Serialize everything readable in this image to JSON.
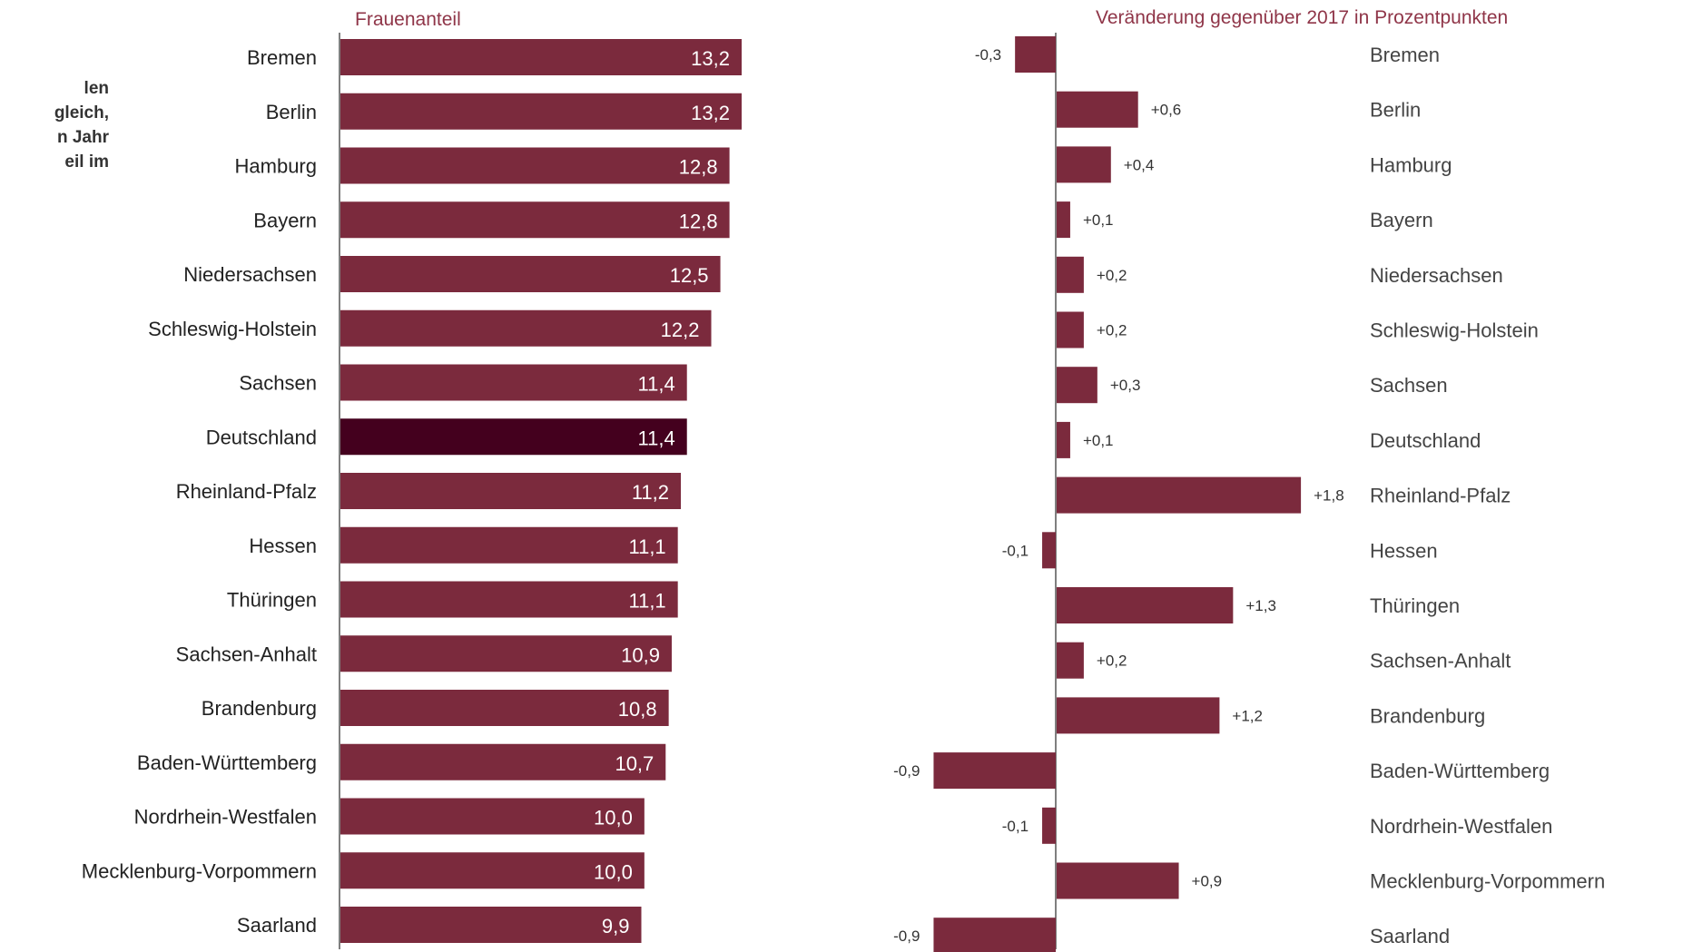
{
  "intro_fragments": [
    "len",
    "gleich,",
    "n Jahr",
    "",
    "eil im"
  ],
  "colors": {
    "bar": "#7b2a3d",
    "highlight": "#44001e",
    "title": "#8f3548",
    "axis": "#555555"
  },
  "chart_data": [
    {
      "type": "bar",
      "orientation": "horizontal",
      "title": "Frauenanteil",
      "categories": [
        "Bremen",
        "Berlin",
        "Hamburg",
        "Bayern",
        "Niedersachsen",
        "Schleswig-Holstein",
        "Sachsen",
        "Deutschland",
        "Rheinland-Pfalz",
        "Hessen",
        "Thüringen",
        "Sachsen-Anhalt",
        "Brandenburg",
        "Baden-Württemberg",
        "Nordrhein-Westfalen",
        "Mecklenburg-Vorpommern",
        "Saarland"
      ],
      "values": [
        13.2,
        13.2,
        12.8,
        12.8,
        12.5,
        12.2,
        11.4,
        11.4,
        11.2,
        11.1,
        11.1,
        10.9,
        10.8,
        10.7,
        10.0,
        10.0,
        9.9
      ],
      "value_labels": [
        "13,2",
        "13,2",
        "12,8",
        "12,8",
        "12,5",
        "12,2",
        "11,4",
        "11,4",
        "11,2",
        "11,1",
        "11,1",
        "10,9",
        "10,8",
        "10,7",
        "10,0",
        "10,0",
        "9,9"
      ],
      "highlight": "Deutschland",
      "xlim": [
        0,
        13.2
      ]
    },
    {
      "type": "bar",
      "orientation": "horizontal",
      "title": "Veränderung gegenüber 2017 in Prozentpunkten",
      "categories": [
        "Bremen",
        "Berlin",
        "Hamburg",
        "Bayern",
        "Niedersachsen",
        "Schleswig-Holstein",
        "Sachsen",
        "Deutschland",
        "Rheinland-Pfalz",
        "Hessen",
        "Thüringen",
        "Sachsen-Anhalt",
        "Brandenburg",
        "Baden-Württemberg",
        "Nordrhein-Westfalen",
        "Mecklenburg-Vorpommern",
        "Saarland"
      ],
      "values": [
        -0.3,
        0.6,
        0.4,
        0.1,
        0.2,
        0.2,
        0.3,
        0.1,
        1.8,
        -0.1,
        1.3,
        0.2,
        1.2,
        -0.9,
        -0.1,
        0.9,
        -0.9
      ],
      "value_labels": [
        "-0,3",
        "+0,6",
        "+0,4",
        "+0,1",
        "+0,2",
        "+0,2",
        "+0,3",
        "+0,1",
        "+1,8",
        "-0,1",
        "+1,3",
        "+0,2",
        "+1,2",
        "-0,9",
        "-0,1",
        "+0,9",
        "-0,9"
      ]
    }
  ]
}
